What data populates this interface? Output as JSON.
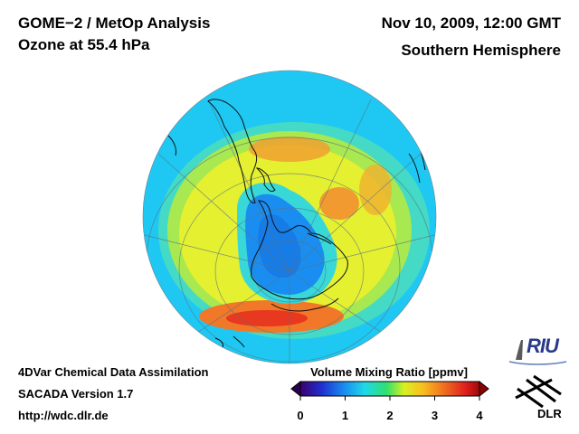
{
  "header": {
    "title_line1": "GOME−2 / MetOp Analysis",
    "title_line2": "Ozone at 55.4 hPa",
    "date": "Nov 10, 2009, 12:00 GMT",
    "hemisphere": "Southern Hemisphere"
  },
  "footer": {
    "line1": "4DVar Chemical Data Assimilation",
    "line2": "SACADA Version 1.7",
    "line3": "http://wdc.dlr.de"
  },
  "colorbar": {
    "title": "Volume Mixing Ratio [ppmv]",
    "ticks": [
      "0",
      "1",
      "2",
      "3",
      "4"
    ],
    "min": 0,
    "max": 4,
    "colors": [
      "#3a0070",
      "#2030d0",
      "#1a90f0",
      "#20d8e8",
      "#30e070",
      "#d8f020",
      "#f8c020",
      "#f07020",
      "#e02020",
      "#a00808"
    ]
  },
  "logos": {
    "riu": "RIU",
    "dlr": "DLR"
  },
  "map": {
    "projection": "orthographic-south-polar",
    "background_color": "#1ec8f2",
    "hole_color": "#1a8ef0",
    "ring_color": "#e8f020",
    "max_color": "#f05020"
  }
}
